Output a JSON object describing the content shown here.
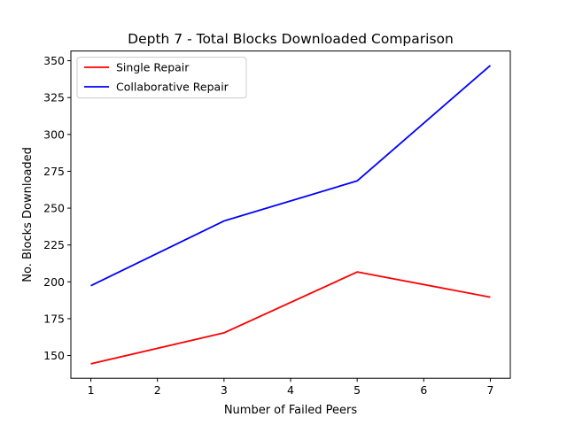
{
  "chart_data": {
    "type": "line",
    "title": "Depth 7 - Total Blocks Downloaded Comparison",
    "xlabel": "Number of Failed Peers",
    "ylabel": "No. Blocks Downloaded",
    "x": [
      1,
      3,
      5,
      7
    ],
    "xticks": [
      1,
      2,
      3,
      4,
      5,
      6,
      7
    ],
    "xlim": [
      0.7,
      7.3
    ],
    "yticks": [
      150,
      175,
      200,
      225,
      250,
      275,
      300,
      325,
      350
    ],
    "ylim": [
      134.6,
      356.6
    ],
    "grid": false,
    "legend": "top-left",
    "series": [
      {
        "name": "Single Repair",
        "color": "#ff0000",
        "values": [
          144.4,
          165.4,
          206.7,
          189.6
        ]
      },
      {
        "name": "Collaborative Repair",
        "color": "#0000ff",
        "values": [
          197.4,
          241.3,
          268.5,
          346.8
        ]
      }
    ]
  }
}
